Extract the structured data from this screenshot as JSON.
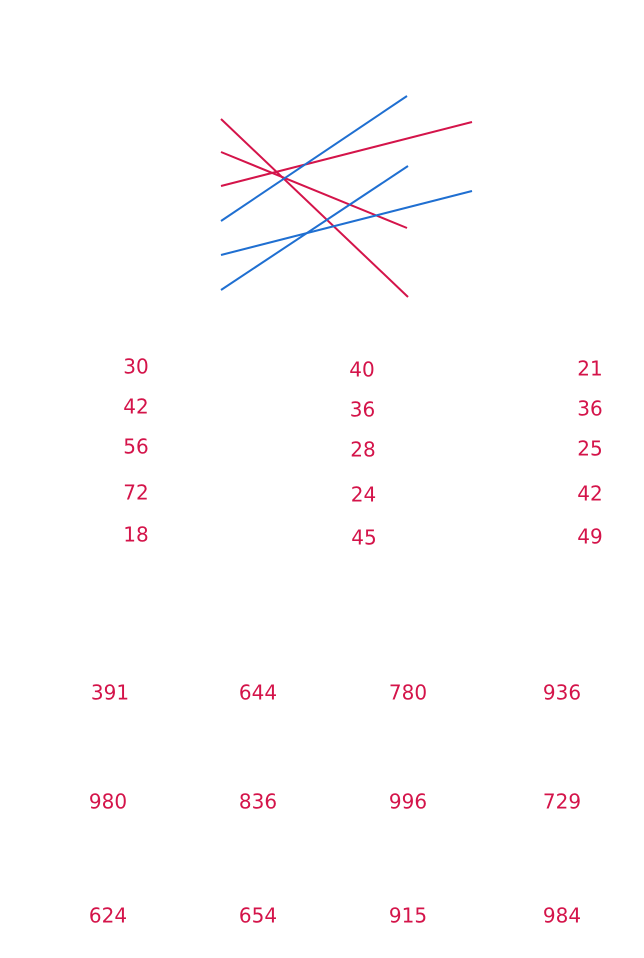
{
  "columns": [
    [
      30,
      42,
      56,
      72,
      18
    ],
    [
      40,
      36,
      28,
      24,
      45
    ],
    [
      21,
      36,
      25,
      42,
      49
    ]
  ],
  "grid": [
    [
      391,
      644,
      780,
      936
    ],
    [
      980,
      836,
      996,
      729
    ],
    [
      624,
      654,
      915,
      984
    ]
  ]
}
